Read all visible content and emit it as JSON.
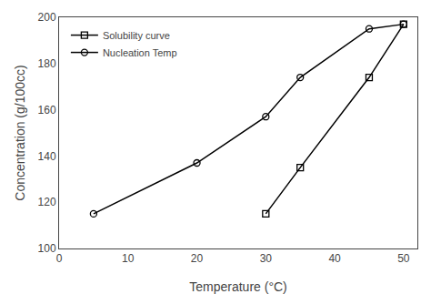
{
  "chart_data": {
    "type": "line",
    "xlabel": "Temperature (°C)",
    "ylabel": "Concentration (g/100cc)",
    "series": [
      {
        "name": "Solubility curve",
        "color": "#000000",
        "marker": "square",
        "x": [
          30,
          35,
          45,
          50
        ],
        "values": [
          115,
          135,
          174,
          197
        ]
      },
      {
        "name": "Nucleation Temp",
        "color": "#000000",
        "marker": "circle",
        "x": [
          5,
          20,
          30,
          35,
          45,
          50
        ],
        "values": [
          115,
          137,
          157,
          174,
          195,
          197
        ]
      }
    ],
    "xlim": [
      0,
      52
    ],
    "ylim": [
      100,
      200
    ],
    "xticks": [
      0,
      10,
      20,
      30,
      40,
      50
    ],
    "yticks": [
      100,
      120,
      140,
      160,
      180,
      200
    ],
    "grid": false,
    "legend": "upper left"
  }
}
